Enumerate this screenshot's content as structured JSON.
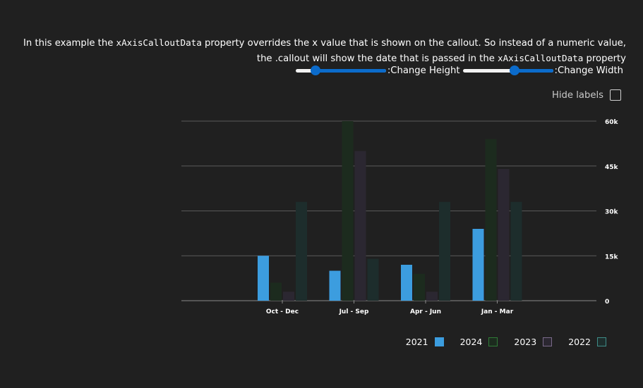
{
  "description": {
    "part1": "In this example the ",
    "code1": "xAxisCalloutData",
    "part2": " property overrides the x value that is shown on the callout. So instead of a numeric value, the .callout will show the date that is passed in the ",
    "code2": "xAxisCalloutData",
    "part3": " property"
  },
  "controls": {
    "height_label": ":Change Height",
    "height_value": 0.78,
    "width_label": ":Change Width",
    "width_value": 0.43
  },
  "hide_labels": {
    "label": "Hide labels",
    "checked": false
  },
  "chart_data": {
    "type": "bar",
    "categories": [
      "Oct - Dec",
      "Jul - Sep",
      "Apr - Jun",
      "Jan - Mar"
    ],
    "series": [
      {
        "name": "2021",
        "values": [
          15000,
          10000,
          12000,
          24000
        ],
        "color": "#3c9ddf"
      },
      {
        "name": "2024",
        "values": [
          6000,
          60000,
          9000,
          54000
        ],
        "color": "#1c2b1e"
      },
      {
        "name": "2023",
        "values": [
          3000,
          50000,
          3000,
          44000
        ],
        "color": "#2b2731"
      },
      {
        "name": "2022",
        "values": [
          33000,
          14000,
          33000,
          33000
        ],
        "color": "#1d2d2c"
      }
    ],
    "yticks": [
      0,
      15000,
      30000,
      45000,
      60000
    ],
    "ytick_labels": [
      "0",
      "15k",
      "30k",
      "45k",
      "60k"
    ],
    "ylim": [
      0,
      60000
    ],
    "grid": true,
    "legend_position": "bottom-right"
  },
  "legend": [
    {
      "label": "2021",
      "fill": "#3c9ddf",
      "border": "#3c9ddf"
    },
    {
      "label": "2024",
      "fill": "#1c2b1e",
      "border": "#2f7a37"
    },
    {
      "label": "2023",
      "fill": "#2b2731",
      "border": "#7a6a8a"
    },
    {
      "label": "2022",
      "fill": "#1d2d2c",
      "border": "#3f8c88"
    }
  ]
}
